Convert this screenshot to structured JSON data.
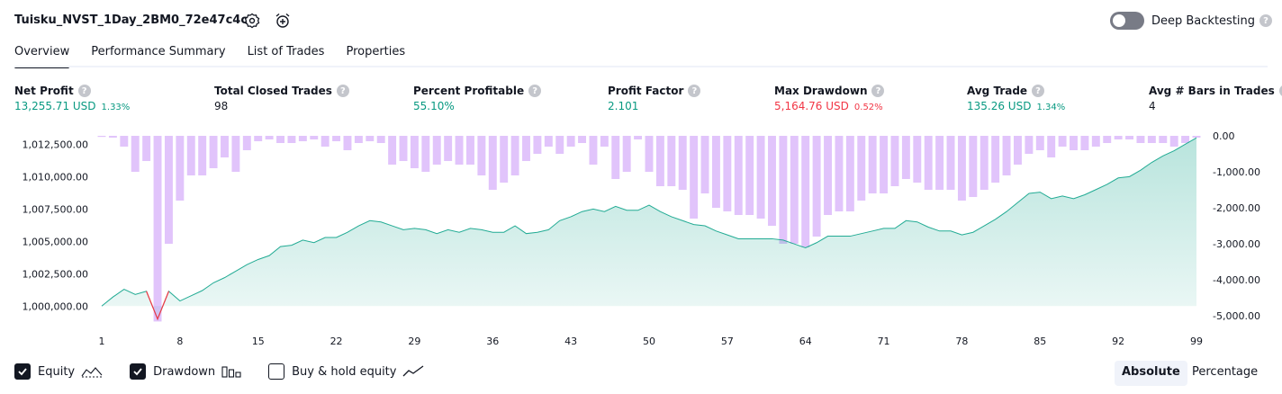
{
  "header": {
    "strategy_title": "Tuisku_NVST_1Day_2BM0_72e47c4c",
    "deep_backtesting_label": "Deep Backtesting",
    "help_glyph": "?"
  },
  "tabs": [
    {
      "label": "Overview"
    },
    {
      "label": "Performance Summary"
    },
    {
      "label": "List of Trades"
    },
    {
      "label": "Properties"
    }
  ],
  "metrics": [
    {
      "label": "Net Profit",
      "value": "13,255.71 USD",
      "pct": "1.33%"
    },
    {
      "label": "Total Closed Trades",
      "value": "98"
    },
    {
      "label": "Percent Profitable",
      "value": "55.10%"
    },
    {
      "label": "Profit Factor",
      "value": "2.101"
    },
    {
      "label": "Max Drawdown",
      "value": "5,164.76 USD",
      "pct": "0.52%"
    },
    {
      "label": "Avg Trade",
      "value": "135.26 USD",
      "pct": "1.34%"
    },
    {
      "label": "Avg # Bars in Trades",
      "value": "4"
    }
  ],
  "colors": {
    "positive": "#089981",
    "negative": "#f23645",
    "equity_line": "#22ab94",
    "drawdown_bar": "#e1c4fb",
    "text": "#131722"
  },
  "legend": {
    "equity_label": "Equity",
    "drawdown_label": "Drawdown",
    "buy_hold_label": "Buy & hold equity",
    "equity_checked": true,
    "drawdown_checked": true,
    "buy_hold_checked": false
  },
  "scale_toggle": {
    "absolute_label": "Absolute",
    "percentage_label": "Percentage",
    "selected": "Absolute"
  },
  "chart_data": {
    "type": "area",
    "x_range": [
      1,
      99
    ],
    "x_ticks": [
      1,
      8,
      15,
      22,
      29,
      36,
      43,
      50,
      57,
      64,
      71,
      78,
      85,
      92,
      99
    ],
    "left_axis": {
      "ticks": [
        1000000,
        1002500,
        1005000,
        1007500,
        1010000,
        1012500
      ],
      "tick_labels": [
        "1,000,000.00",
        "1,002,500.00",
        "1,005,000.00",
        "1,007,500.00",
        "1,010,000.00",
        "1,012,500.00"
      ],
      "range": [
        998700,
        1013150
      ]
    },
    "right_axis": {
      "ticks": [
        0,
        -1000,
        -2000,
        -3000,
        -4000,
        -5000
      ],
      "tick_labels": [
        "0.00",
        "-1,000.00",
        "-2,000.00",
        "-3,000.00",
        "-4,000.00",
        "-5,000.00"
      ],
      "range": [
        -5200,
        0
      ]
    },
    "series": [
      {
        "name": "Equity",
        "axis": "left",
        "x": [
          1,
          2,
          3,
          4,
          5,
          6,
          7,
          8,
          9,
          10,
          11,
          12,
          13,
          14,
          15,
          16,
          17,
          18,
          19,
          20,
          21,
          22,
          23,
          24,
          25,
          26,
          27,
          28,
          29,
          30,
          31,
          32,
          33,
          34,
          35,
          36,
          37,
          38,
          39,
          40,
          41,
          42,
          43,
          44,
          45,
          46,
          47,
          48,
          49,
          50,
          51,
          52,
          53,
          54,
          55,
          56,
          57,
          58,
          59,
          60,
          61,
          62,
          63,
          64,
          65,
          66,
          67,
          68,
          69,
          70,
          71,
          72,
          73,
          74,
          75,
          76,
          77,
          78,
          79,
          80,
          81,
          82,
          83,
          84,
          85,
          86,
          87,
          88,
          89,
          90,
          91,
          92,
          93,
          94,
          95,
          96,
          97,
          98,
          99
        ],
        "values": [
          1000000,
          1000700,
          1001300,
          1000900,
          1001150,
          999000,
          1001150,
          1000400,
          1000800,
          1001200,
          1001800,
          1002200,
          1002700,
          1003200,
          1003600,
          1003900,
          1004600,
          1004700,
          1005100,
          1004900,
          1005300,
          1005300,
          1005700,
          1006200,
          1006600,
          1006500,
          1006200,
          1005900,
          1006000,
          1005900,
          1005600,
          1005900,
          1005700,
          1006000,
          1005900,
          1005700,
          1005700,
          1006200,
          1005600,
          1005700,
          1005900,
          1006600,
          1006900,
          1007300,
          1007500,
          1007300,
          1007700,
          1007400,
          1007400,
          1007800,
          1007300,
          1006900,
          1006600,
          1006300,
          1006200,
          1005800,
          1005500,
          1005200,
          1005200,
          1005200,
          1005200,
          1005100,
          1004800,
          1004500,
          1004900,
          1005400,
          1005400,
          1005400,
          1005600,
          1005800,
          1006000,
          1006000,
          1006600,
          1006500,
          1006100,
          1005800,
          1005800,
          1005500,
          1005700,
          1006200,
          1006700,
          1007300,
          1008000,
          1008700,
          1008800,
          1008300,
          1008500,
          1008300,
          1008600,
          1009000,
          1009400,
          1009900,
          1010000,
          1010500,
          1011100,
          1011600,
          1012000,
          1012500,
          1013000
        ]
      },
      {
        "name": "Drawdown",
        "axis": "right",
        "x": [
          1,
          2,
          3,
          4,
          5,
          6,
          7,
          8,
          9,
          10,
          11,
          12,
          13,
          14,
          15,
          16,
          17,
          18,
          19,
          20,
          21,
          22,
          23,
          24,
          25,
          26,
          27,
          28,
          29,
          30,
          31,
          32,
          33,
          34,
          35,
          36,
          37,
          38,
          39,
          40,
          41,
          42,
          43,
          44,
          45,
          46,
          47,
          48,
          49,
          50,
          51,
          52,
          53,
          54,
          55,
          56,
          57,
          58,
          59,
          60,
          61,
          62,
          63,
          64,
          65,
          66,
          67,
          68,
          69,
          70,
          71,
          72,
          73,
          74,
          75,
          76,
          77,
          78,
          79,
          80,
          81,
          82,
          83,
          84,
          85,
          86,
          87,
          88,
          89,
          90,
          91,
          92,
          93,
          94,
          95,
          96,
          97,
          98,
          99
        ],
        "values": [
          -30,
          -50,
          -300,
          -1000,
          -700,
          -5160,
          -3000,
          -1800,
          -1100,
          -1100,
          -900,
          -600,
          -1000,
          -400,
          -150,
          -100,
          -200,
          -200,
          -150,
          -100,
          -300,
          -150,
          -400,
          -200,
          -150,
          -200,
          -800,
          -700,
          -900,
          -1000,
          -800,
          -700,
          -800,
          -800,
          -1100,
          -1500,
          -1300,
          -1100,
          -700,
          -500,
          -300,
          -500,
          -300,
          -200,
          -800,
          -300,
          -1200,
          -1000,
          -100,
          -1000,
          -1400,
          -1400,
          -1500,
          -2300,
          -1600,
          -2000,
          -2100,
          -2200,
          -2200,
          -2300,
          -2500,
          -3000,
          -3000,
          -3100,
          -2800,
          -2200,
          -2100,
          -2100,
          -1800,
          -1600,
          -1600,
          -1400,
          -1200,
          -1300,
          -1500,
          -1500,
          -1500,
          -1800,
          -1700,
          -1500,
          -1300,
          -1100,
          -800,
          -500,
          -400,
          -600,
          -300,
          -400,
          -400,
          -300,
          -200,
          -100,
          -100,
          -200,
          -200,
          -200,
          -300,
          -200,
          -50
        ]
      }
    ]
  }
}
